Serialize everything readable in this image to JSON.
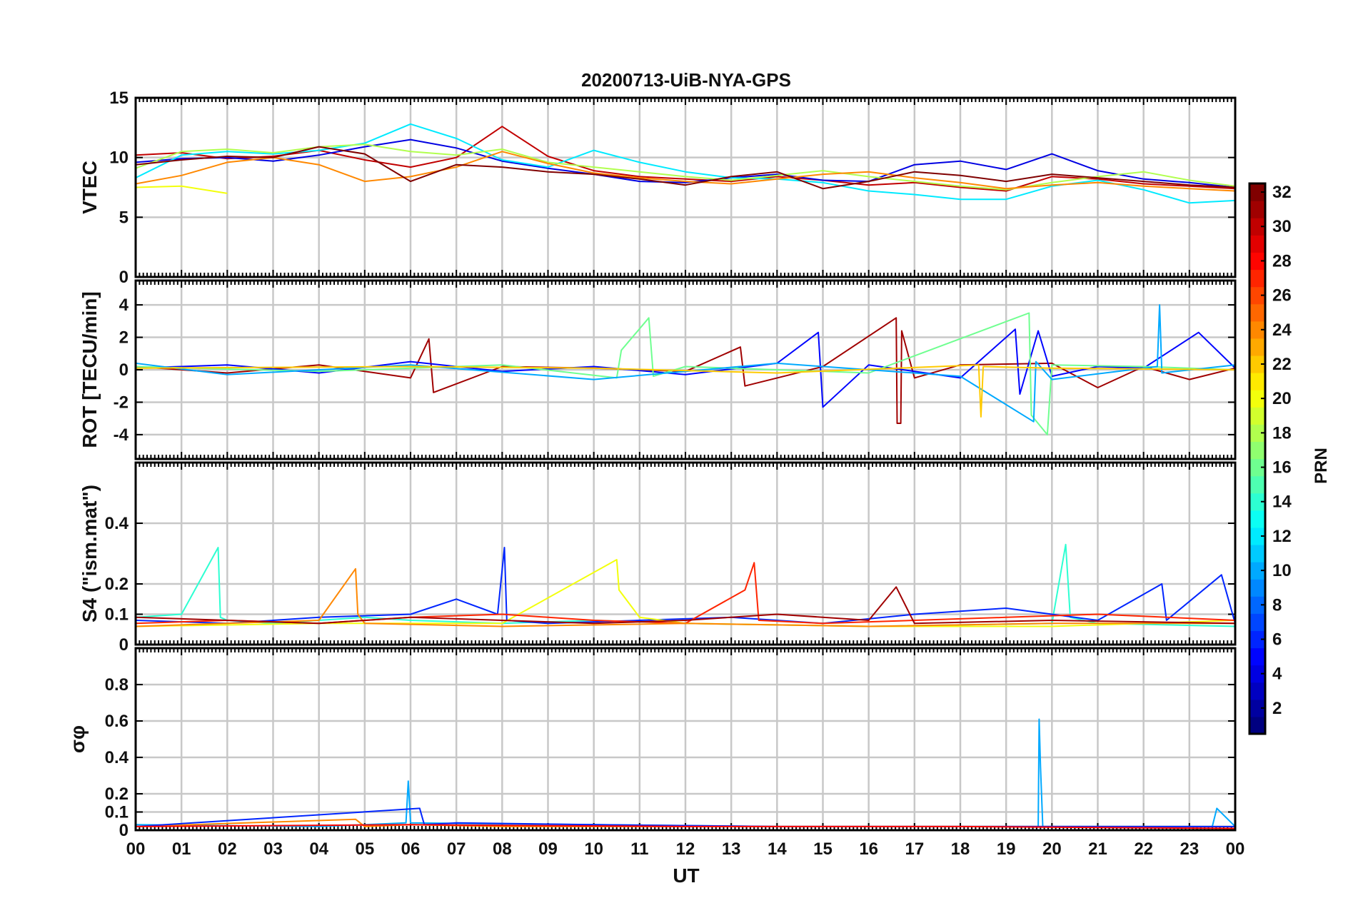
{
  "chart_data": {
    "type": "line",
    "title": "20200713-UiB-NYA-GPS",
    "xlabel": "UT",
    "x_range": [
      "00",
      "00"
    ],
    "x_tick_labels": [
      "00",
      "01",
      "02",
      "03",
      "04",
      "05",
      "06",
      "07",
      "08",
      "09",
      "10",
      "11",
      "12",
      "13",
      "14",
      "15",
      "16",
      "17",
      "18",
      "19",
      "20",
      "21",
      "22",
      "23",
      "00"
    ],
    "grid": true,
    "colorbar": {
      "label": "PRN",
      "range": [
        1,
        32
      ],
      "colormap": "jet",
      "placement": "right",
      "tick_labels": [
        "2",
        "4",
        "6",
        "8",
        "10",
        "12",
        "14",
        "16",
        "18",
        "20",
        "22",
        "24",
        "26",
        "28",
        "30",
        "32"
      ]
    },
    "panels": [
      {
        "id": "vtec",
        "ylabel": "VTEC",
        "ylim": [
          0,
          15
        ],
        "y_tick_labels": [
          "0",
          "5",
          "10",
          "15"
        ],
        "series": [
          {
            "prn": 30,
            "x": [
              0,
              1,
              2,
              3,
              4,
              5,
              6,
              7,
              8,
              9,
              10,
              11,
              12,
              13,
              14,
              15,
              16,
              17,
              18,
              19,
              20,
              21,
              22,
              23,
              24
            ],
            "y": [
              10.2,
              10.4,
              9.9,
              10.1,
              10.6,
              9.8,
              9.2,
              10.0,
              12.6,
              10.1,
              8.9,
              8.4,
              8.2,
              8.0,
              8.4,
              8.1,
              7.7,
              7.9,
              7.5,
              7.2,
              8.4,
              8.2,
              7.8,
              7.6,
              7.4
            ]
          },
          {
            "prn": 4,
            "x": [
              0,
              1,
              2,
              3,
              4,
              5,
              6,
              7,
              8,
              9,
              10,
              11,
              12,
              13,
              14,
              15,
              16,
              17,
              18,
              19,
              20,
              21,
              22,
              23,
              24
            ],
            "y": [
              9.6,
              9.9,
              10.0,
              9.7,
              10.2,
              10.9,
              11.5,
              10.8,
              9.7,
              9.1,
              8.6,
              8.0,
              7.9,
              8.3,
              8.6,
              8.1,
              8.0,
              9.4,
              9.7,
              9.0,
              10.3,
              8.9,
              8.2,
              7.9,
              7.5
            ]
          },
          {
            "prn": 12,
            "x": [
              0,
              1,
              2,
              3,
              4,
              5,
              6,
              7,
              8,
              9,
              10,
              11,
              12,
              13,
              14,
              15,
              16,
              17,
              18,
              19,
              20,
              21,
              22,
              23,
              24
            ],
            "y": [
              8.3,
              10.2,
              10.5,
              10.3,
              10.6,
              11.2,
              12.8,
              11.6,
              9.8,
              9.2,
              10.6,
              9.6,
              8.8,
              8.3,
              8.2,
              7.9,
              7.2,
              6.9,
              6.5,
              6.5,
              7.6,
              8.1,
              7.3,
              6.2,
              6.4
            ]
          },
          {
            "prn": 18,
            "x": [
              0,
              1,
              2,
              3,
              4,
              5,
              6,
              7,
              8,
              9,
              10,
              11,
              12,
              13,
              14,
              15,
              16,
              17,
              18,
              19,
              20,
              21,
              22,
              23,
              24
            ],
            "y": [
              9.1,
              10.5,
              10.7,
              10.4,
              10.9,
              11.1,
              10.5,
              10.2,
              10.7,
              9.6,
              9.2,
              8.8,
              8.4,
              8.1,
              8.5,
              8.9,
              8.4,
              8.0,
              7.6,
              7.3,
              7.9,
              8.4,
              8.8,
              8.1,
              7.6
            ]
          },
          {
            "prn": 24,
            "x": [
              0,
              1,
              2,
              3,
              4,
              5,
              6,
              7,
              8,
              9,
              10,
              11,
              12,
              13,
              14,
              15,
              16,
              17,
              18,
              19,
              20,
              21,
              22,
              23,
              24
            ],
            "y": [
              7.8,
              8.5,
              9.6,
              10.0,
              9.4,
              8.0,
              8.4,
              9.2,
              10.5,
              9.5,
              8.7,
              8.3,
              8.0,
              7.8,
              8.2,
              8.6,
              8.8,
              8.3,
              7.9,
              7.4,
              7.7,
              7.9,
              7.6,
              7.4,
              7.2
            ]
          },
          {
            "prn": 32,
            "x": [
              0,
              1,
              2,
              3,
              4,
              5,
              6,
              7,
              8,
              9,
              10,
              11,
              12,
              13,
              14,
              15,
              16,
              17,
              18,
              19,
              20,
              21,
              22,
              23,
              24
            ],
            "y": [
              9.4,
              9.8,
              10.1,
              10.0,
              10.9,
              10.3,
              8.0,
              9.4,
              9.2,
              8.8,
              8.6,
              8.2,
              7.7,
              8.4,
              8.8,
              7.4,
              8.0,
              8.8,
              8.5,
              8.0,
              8.6,
              8.3,
              8.0,
              7.7,
              7.5
            ]
          },
          {
            "prn": 20,
            "x": [
              0,
              1,
              2
            ],
            "y": [
              7.5,
              7.6,
              7.0
            ]
          }
        ]
      },
      {
        "id": "rot",
        "ylabel": "ROT [TECU/min]",
        "ylim": [
          -5.5,
          5.5
        ],
        "y_tick_labels": [
          "-4",
          "-2",
          "0",
          "2",
          "4"
        ],
        "series": [
          {
            "prn": 31,
            "x": [
              0,
              2,
              4,
              6,
              6.4,
              6.5,
              8,
              10,
              12,
              13.2,
              13.3,
              15,
              16.6,
              16.62,
              16.7,
              16.72,
              17,
              18,
              20,
              21,
              22,
              23,
              24
            ],
            "y": [
              0.2,
              -0.2,
              0.3,
              -0.5,
              1.9,
              -1.4,
              0.2,
              0.1,
              -0.1,
              1.4,
              -1.0,
              0.2,
              3.2,
              -3.3,
              -3.3,
              2.4,
              -0.5,
              0.3,
              0.4,
              -1.1,
              0.2,
              -0.6,
              0.1
            ]
          },
          {
            "prn": 5,
            "x": [
              0,
              2,
              4,
              6,
              8,
              10,
              12,
              14,
              14.9,
              15,
              16,
              18,
              19.2,
              19.3,
              19.7,
              20,
              21,
              22,
              23.2,
              24
            ],
            "y": [
              0.1,
              0.3,
              -0.2,
              0.5,
              -0.1,
              0.2,
              -0.3,
              0.4,
              2.3,
              -2.3,
              0.3,
              -0.5,
              2.5,
              -1.5,
              2.4,
              -0.4,
              0.2,
              0.1,
              2.3,
              0.1
            ]
          },
          {
            "prn": 16,
            "x": [
              0,
              4,
              8,
              10.5,
              10.6,
              11.2,
              11.3,
              12,
              16,
              19.5,
              19.55,
              19.9,
              20,
              22,
              24
            ],
            "y": [
              0.2,
              -0.1,
              0.3,
              -0.5,
              1.2,
              3.2,
              -0.4,
              0.2,
              -0.2,
              3.5,
              -2.8,
              -4.0,
              0.3,
              0.2,
              0.0
            ]
          },
          {
            "prn": 10,
            "x": [
              0,
              2,
              6,
              10,
              14,
              18,
              19.6,
              19.65,
              20,
              22.3,
              22.35,
              22.4,
              24
            ],
            "y": [
              0.4,
              -0.3,
              0.3,
              -0.6,
              0.4,
              -0.4,
              -3.2,
              0.5,
              -0.6,
              0.2,
              4.0,
              -0.2,
              0.3
            ]
          },
          {
            "prn": 22,
            "x": [
              0,
              6,
              10,
              14,
              18.4,
              18.45,
              18.5,
              20,
              24
            ],
            "y": [
              0.1,
              0.2,
              0.1,
              -0.2,
              0.3,
              -2.9,
              0.2,
              0.1,
              0.0
            ]
          }
        ]
      },
      {
        "id": "s4",
        "ylabel": "S4 (\"ism.mat\")",
        "ylim": [
          0,
          0.6
        ],
        "y_tick_labels": [
          "0",
          "0.1",
          "0.2",
          "0.4"
        ],
        "series": [
          {
            "prn": 14,
            "x": [
              0,
              1,
              1.8,
              1.85,
              2,
              3,
              4,
              5,
              6,
              8,
              10,
              12,
              16,
              20,
              20.3,
              20.4,
              21,
              24
            ],
            "y": [
              0.09,
              0.1,
              0.32,
              0.09,
              0.08,
              0.07,
              0.08,
              0.09,
              0.08,
              0.07,
              0.08,
              0.07,
              0.06,
              0.07,
              0.33,
              0.09,
              0.07,
              0.06
            ]
          },
          {
            "prn": 6,
            "x": [
              0,
              2,
              4,
              6,
              7,
              7.9,
              8.05,
              8.1,
              9,
              11,
              13,
              15,
              17,
              19,
              21,
              22.4,
              22.5,
              23.7,
              24
            ],
            "y": [
              0.08,
              0.07,
              0.09,
              0.1,
              0.15,
              0.1,
              0.32,
              0.08,
              0.07,
              0.08,
              0.09,
              0.07,
              0.1,
              0.12,
              0.08,
              0.2,
              0.08,
              0.23,
              0.07
            ]
          },
          {
            "prn": 20,
            "x": [
              0,
              4,
              8,
              10.5,
              10.55,
              11,
              12,
              16,
              20,
              24
            ],
            "y": [
              0.06,
              0.07,
              0.07,
              0.28,
              0.18,
              0.09,
              0.07,
              0.06,
              0.06,
              0.08
            ]
          },
          {
            "prn": 27,
            "x": [
              0,
              2,
              4,
              6,
              8,
              10,
              12,
              13.3,
              13.5,
              13.6,
              15,
              17,
              19,
              21,
              24
            ],
            "y": [
              0.07,
              0.08,
              0.07,
              0.09,
              0.1,
              0.08,
              0.07,
              0.18,
              0.27,
              0.08,
              0.07,
              0.08,
              0.09,
              0.1,
              0.08
            ]
          },
          {
            "prn": 24,
            "x": [
              0,
              2,
              4,
              4.8,
              4.85,
              5,
              8,
              12,
              16,
              20,
              24
            ],
            "y": [
              0.06,
              0.07,
              0.08,
              0.25,
              0.1,
              0.07,
              0.06,
              0.07,
              0.06,
              0.07,
              0.07
            ]
          },
          {
            "prn": 31,
            "x": [
              0,
              2,
              4,
              6,
              8,
              10,
              12,
              14,
              16,
              16.6,
              17,
              20,
              24
            ],
            "y": [
              0.09,
              0.08,
              0.07,
              0.09,
              0.08,
              0.07,
              0.08,
              0.1,
              0.08,
              0.19,
              0.07,
              0.08,
              0.07
            ]
          }
        ]
      },
      {
        "id": "sigma_phi",
        "ylabel": "σφ",
        "ylim": [
          0,
          1
        ],
        "y_tick_labels": [
          "0",
          "0.1",
          "0.2",
          "0.4",
          "0.6",
          "0.8"
        ],
        "series": [
          {
            "prn": 10,
            "x": [
              0,
              4,
              5.9,
              5.95,
              6,
              10,
              14,
              19.7,
              19.72,
              19.75,
              19.8,
              23.5,
              23.6,
              24
            ],
            "y": [
              0.03,
              0.02,
              0.04,
              0.27,
              0.04,
              0.03,
              0.02,
              0.02,
              0.61,
              0.35,
              0.02,
              0.02,
              0.12,
              0.02
            ]
          },
          {
            "prn": 24,
            "x": [
              0,
              4.8,
              5.0,
              6,
              8,
              12,
              16,
              20,
              24
            ],
            "y": [
              0.02,
              0.06,
              0.02,
              0.03,
              0.02,
              0.02,
              0.02,
              0.02,
              0.02
            ]
          },
          {
            "prn": 6,
            "x": [
              0,
              6.2,
              6.3,
              7,
              10,
              14,
              18,
              24
            ],
            "y": [
              0.02,
              0.12,
              0.03,
              0.04,
              0.03,
              0.02,
              0.02,
              0.02
            ]
          },
          {
            "prn": 28,
            "x": [
              0,
              6,
              12,
              18,
              24
            ],
            "y": [
              0.02,
              0.03,
              0.02,
              0.02,
              0.01
            ]
          }
        ]
      }
    ]
  }
}
